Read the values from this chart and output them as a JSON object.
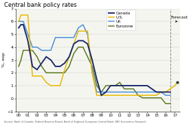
{
  "title": "Central bank policy rates",
  "ylabel": "%, eop",
  "source": "Source: Bank of Canada, Federal Reserve Board, Bank of England, European Central Bank, RBC Economics Research",
  "ylim": [
    -1,
    7
  ],
  "yticks": [
    7,
    6,
    5,
    4,
    3,
    2,
    1,
    0,
    -1
  ],
  "forecast_x": 16.5,
  "forecast_label": "Forecast",
  "bg_color": "#f5f5f0",
  "colors": {
    "Canada": "#1c2b6b",
    "US": "#e8b800",
    "UK": "#4a90d9",
    "Eurozone": "#5a7a1e"
  },
  "Canada": {
    "x": [
      0,
      0.25,
      0.5,
      1,
      1.5,
      2,
      2.5,
      3,
      3.5,
      4,
      4.5,
      5,
      5.5,
      6,
      6.5,
      7,
      7.5,
      8,
      8.5,
      9,
      9.5,
      10,
      10.5,
      11,
      11.5,
      12,
      12.5,
      13,
      13.5,
      14,
      14.5,
      15,
      15.5,
      16,
      16.25,
      16.5
    ],
    "y": [
      5.5,
      5.75,
      5.75,
      4.5,
      2.5,
      2.25,
      2.75,
      3.25,
      3.0,
      2.5,
      2.5,
      2.75,
      3.25,
      4.25,
      4.5,
      4.5,
      4.25,
      3.0,
      1.5,
      0.25,
      0.5,
      1.0,
      1.0,
      1.0,
      1.0,
      1.0,
      1.0,
      1.0,
      1.0,
      1.0,
      0.75,
      0.5,
      0.5,
      0.5,
      0.5,
      0.5
    ]
  },
  "US": {
    "x": [
      0,
      0.25,
      0.5,
      1,
      1.5,
      2,
      2.5,
      3,
      3.5,
      4,
      4.5,
      5,
      5.5,
      6,
      6.5,
      7,
      7.5,
      8,
      8.5,
      9,
      9.5,
      10,
      10.5,
      11,
      11.5,
      12,
      12.5,
      13,
      13.5,
      14,
      14.5,
      15,
      15.5,
      16,
      16.5,
      17,
      17.25
    ],
    "y": [
      6.0,
      6.5,
      6.5,
      6.5,
      1.75,
      1.75,
      1.75,
      1.25,
      1.0,
      1.0,
      1.0,
      2.25,
      3.25,
      4.25,
      5.25,
      5.25,
      5.25,
      2.0,
      0.25,
      0.25,
      0.25,
      0.25,
      0.25,
      0.25,
      0.25,
      0.25,
      0.25,
      0.25,
      0.25,
      0.25,
      0.25,
      0.25,
      0.5,
      0.5,
      0.75,
      1.0,
      1.25
    ]
  },
  "UK": {
    "x": [
      0,
      0.25,
      0.5,
      1,
      1.5,
      2,
      2.5,
      3,
      3.5,
      4,
      4.5,
      5,
      5.5,
      6,
      6.5,
      7,
      7.5,
      8,
      8.5,
      9,
      9.5,
      10,
      10.5,
      11,
      11.5,
      12,
      12.5,
      13,
      13.5,
      14,
      14.5,
      15,
      15.5,
      16,
      16.5
    ],
    "y": [
      6.0,
      6.0,
      6.0,
      5.0,
      4.0,
      4.0,
      3.75,
      3.75,
      3.75,
      4.75,
      4.75,
      4.75,
      4.75,
      4.75,
      5.5,
      5.75,
      5.0,
      2.0,
      0.5,
      0.5,
      0.5,
      0.5,
      0.5,
      0.5,
      0.5,
      0.5,
      0.5,
      0.5,
      0.5,
      0.5,
      0.5,
      0.5,
      0.5,
      0.25,
      0.25
    ]
  },
  "Eurozone": {
    "x": [
      0,
      0.25,
      0.5,
      1,
      1.5,
      2,
      2.5,
      3,
      3.5,
      4,
      4.5,
      5,
      5.5,
      6,
      6.5,
      7,
      7.5,
      8,
      8.5,
      9,
      9.5,
      10,
      10.5,
      11,
      11.5,
      12,
      12.5,
      13,
      13.5,
      14,
      14.5,
      15,
      15.5,
      16,
      16.5
    ],
    "y": [
      2.5,
      3.0,
      3.75,
      3.75,
      3.75,
      3.25,
      2.5,
      2.0,
      2.0,
      2.0,
      2.0,
      2.0,
      2.5,
      3.5,
      4.0,
      4.0,
      3.25,
      2.5,
      1.0,
      0.5,
      1.0,
      1.0,
      1.0,
      1.25,
      0.75,
      0.75,
      0.75,
      0.25,
      0.05,
      0.05,
      0.05,
      0.05,
      0.05,
      -0.4,
      -0.4
    ]
  },
  "xtick_positions": [
    0,
    1,
    2,
    3,
    4,
    5,
    6,
    7,
    8,
    9,
    10,
    11,
    12,
    13,
    14,
    15,
    16,
    17
  ],
  "xtick_labels": [
    "00",
    "01",
    "02",
    "03",
    "04",
    "05",
    "06",
    "07",
    "08",
    "09",
    "10",
    "11",
    "12",
    "13",
    "14",
    "15",
    "16",
    "17"
  ]
}
